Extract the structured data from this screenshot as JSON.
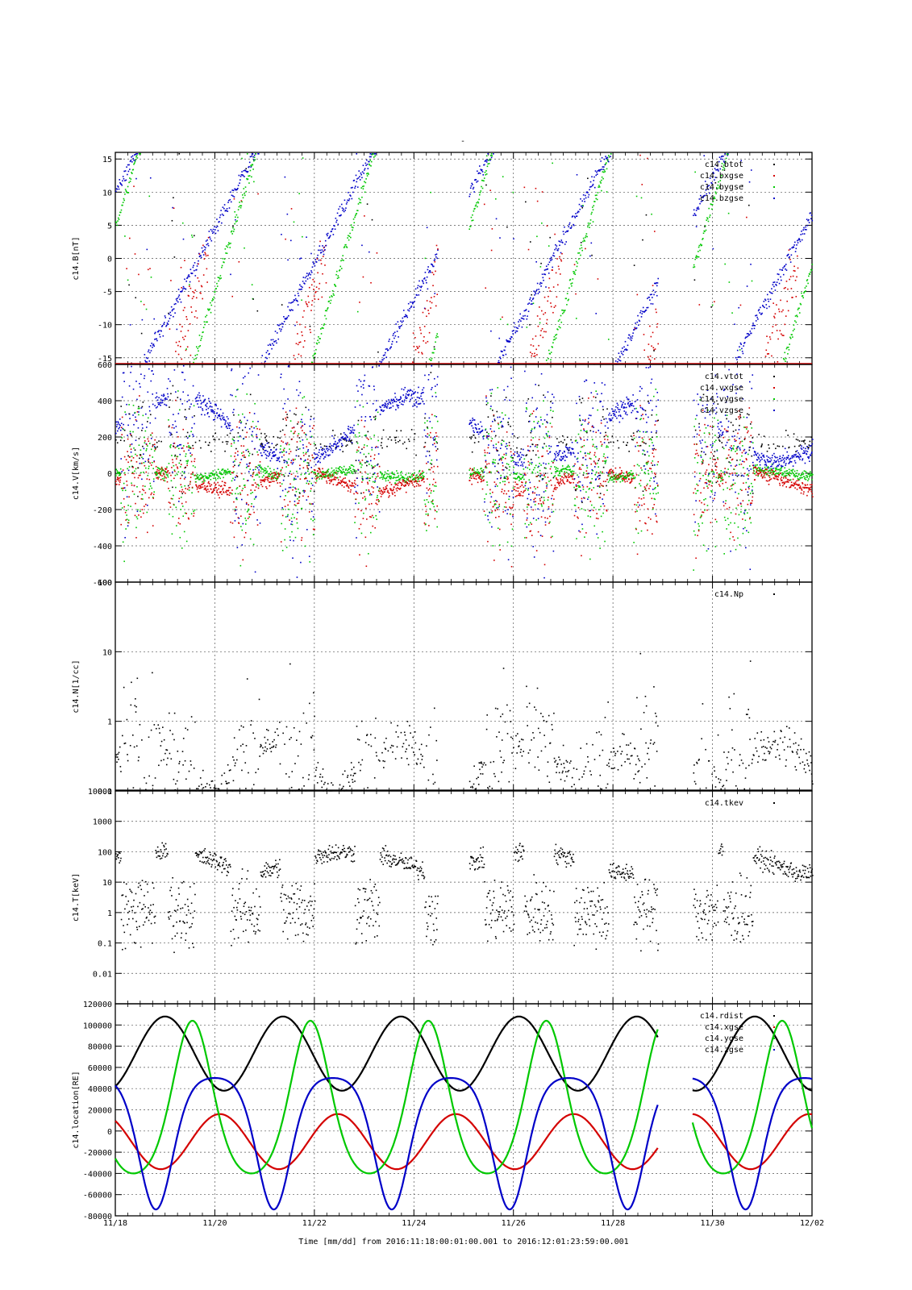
{
  "page": {
    "title": "-",
    "footer": "Time [mm/dd]  from 2016:11:18:00:01:00.001  to  2016:12:01:23:59:00.001"
  },
  "colors": {
    "black": "#000000",
    "red": "#d40000",
    "green": "#00c800",
    "blue": "#0000c8",
    "grid": "#555555"
  },
  "chart_data": [
    {
      "type": "scatter",
      "panel": "magnetic field",
      "ylabel": "c14.B[nT]",
      "ylim": [
        -16,
        16
      ],
      "yscale": "linear",
      "yticks": [
        -15,
        -10,
        -5,
        0,
        5,
        10,
        15
      ],
      "ytick_labels": [
        "-15",
        "-10",
        "-5",
        "0",
        "5",
        "10",
        "15"
      ],
      "legend_placement": "top-right",
      "series": [
        {
          "name": "c14.btot",
          "color": "#000000"
        },
        {
          "name": "c14.bxgse",
          "color": "#d40000"
        },
        {
          "name": "c14.bygse",
          "color": "#00c800"
        },
        {
          "name": "c14.bzgse",
          "color": "#0000c8"
        }
      ]
    },
    {
      "type": "scatter",
      "panel": "velocity",
      "ylabel": "c14.V[km/s]",
      "ylim": [
        -600,
        600
      ],
      "yscale": "linear",
      "yticks": [
        -600,
        -400,
        -200,
        0,
        200,
        400,
        600
      ],
      "ytick_labels": [
        "-600",
        "-400",
        "-200",
        "0",
        "200",
        "400",
        "600"
      ],
      "legend_placement": "top-right",
      "series": [
        {
          "name": "c14.vtot",
          "color": "#000000"
        },
        {
          "name": "c14.vxgse",
          "color": "#d40000"
        },
        {
          "name": "c14.vygse",
          "color": "#00c800"
        },
        {
          "name": "c14.vzgse",
          "color": "#0000c8"
        }
      ]
    },
    {
      "type": "scatter",
      "panel": "density",
      "ylabel": "c14.N[1/cc]",
      "ylim": [
        0.1,
        100
      ],
      "yscale": "log",
      "yticks": [
        0.1,
        1,
        10,
        100
      ],
      "ytick_labels": [
        "0.1",
        "1",
        "10",
        "100"
      ],
      "legend_placement": "top-right",
      "series": [
        {
          "name": "c14.Np",
          "color": "#000000"
        }
      ]
    },
    {
      "type": "scatter",
      "panel": "temperature",
      "ylabel": "c14.T[keV]",
      "ylim": [
        0.001,
        10000
      ],
      "yscale": "log",
      "yticks": [
        0.01,
        0.1,
        1,
        10,
        100,
        1000,
        10000
      ],
      "ytick_labels": [
        "0.01",
        "0.1",
        "1",
        "10",
        "100",
        "1000",
        "10000"
      ],
      "legend_placement": "top-right",
      "series": [
        {
          "name": "c14.tkev",
          "color": "#000000"
        }
      ]
    },
    {
      "type": "line",
      "panel": "location",
      "ylabel": "c14.location[RE]",
      "ylim": [
        -80000,
        120000
      ],
      "yscale": "linear",
      "yticks": [
        -80000,
        -60000,
        -40000,
        -20000,
        0,
        20000,
        40000,
        60000,
        80000,
        100000,
        120000
      ],
      "ytick_labels": [
        "-80000",
        "-60000",
        "-40000",
        "-20000",
        "0",
        "20000",
        "40000",
        "60000",
        "80000",
        "100000",
        "120000"
      ],
      "legend_placement": "top-right",
      "series": [
        {
          "name": "c14.rdist",
          "color": "#000000"
        },
        {
          "name": "c14.xgse",
          "color": "#d40000"
        },
        {
          "name": "c14.ygse",
          "color": "#00c800"
        },
        {
          "name": "c14.zgse",
          "color": "#0000c8"
        }
      ]
    }
  ],
  "x_axis": {
    "ticks": [
      "11/18",
      "11/20",
      "11/22",
      "11/24",
      "11/26",
      "11/28",
      "11/30",
      "12/02"
    ]
  }
}
